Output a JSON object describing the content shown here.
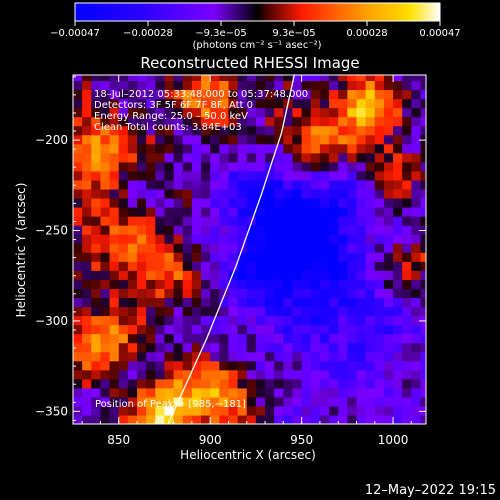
{
  "chart_data": {
    "type": "heatmap",
    "title": "Reconstructed RHESSI Image",
    "xlabel": "Heliocentric X (arcsec)",
    "ylabel": "Heliocentric Y (arcsec)",
    "xlim": [
      825,
      1018
    ],
    "ylim": [
      -357,
      -164
    ],
    "x_ticks": [
      850,
      900,
      950,
      1000
    ],
    "y_ticks": [
      -350,
      -300,
      -250,
      -200
    ],
    "x_tick_labels": [
      "850",
      "900",
      "950",
      "1000"
    ],
    "y_tick_labels": [
      "−350",
      "−300",
      "−250",
      "−200"
    ],
    "colorbar": {
      "range": [
        -0.00047,
        0.00047
      ],
      "tick_labels": [
        "−0.00047",
        "−0.00028",
        "−9.3e−05",
        "9.3e−05",
        "0.00028",
        "0.00047"
      ],
      "unit_label": "(photons cm⁻² s⁻¹ asec⁻²)",
      "colors": [
        "#0000ff",
        "#7a00ff",
        "#ff1a00",
        "#ffa000",
        "#ffffff"
      ]
    },
    "annotations": [
      "18–Jul–2012 05:33:48.000 to 05:37:48.000",
      "Detectors: 3F 5F 6F 7F 8F, Att 0",
      "Energy Range: 25.0 – 50.0 keV",
      "Clean     Total counts: 3.84E+03"
    ],
    "peak_label": "Position of Peak = [985,−181]",
    "limb": [
      [
        877,
        -357
      ],
      [
        898,
        -310
      ],
      [
        914,
        -270
      ],
      [
        928,
        -230
      ],
      [
        939,
        -196
      ],
      [
        946,
        -164
      ]
    ],
    "bright_regions": [
      {
        "x": 985,
        "y": -181,
        "level": 0.00047
      },
      {
        "x": 955,
        "y": -200,
        "level": 0.00035
      },
      {
        "x": 838,
        "y": -205,
        "level": 0.00036
      },
      {
        "x": 900,
        "y": -175,
        "level": 0.00028
      },
      {
        "x": 870,
        "y": -270,
        "level": 0.0003
      },
      {
        "x": 840,
        "y": -310,
        "level": 0.00033
      },
      {
        "x": 878,
        "y": -350,
        "level": 0.00045
      },
      {
        "x": 905,
        "y": -340,
        "level": 0.0004
      },
      {
        "x": 1012,
        "y": -265,
        "level": 0.0002
      },
      {
        "x": 1000,
        "y": -215,
        "level": 0.00022
      },
      {
        "x": 840,
        "y": -250,
        "level": 0.0002
      }
    ],
    "dark_regions": [
      {
        "x": 955,
        "y": -250,
        "level": -0.0004
      },
      {
        "x": 935,
        "y": -270,
        "level": -0.0003
      },
      {
        "x": 975,
        "y": -300,
        "level": -0.00018
      },
      {
        "x": 925,
        "y": -230,
        "level": -0.0002
      }
    ]
  },
  "footer": {
    "timestamp": "12–May–2022 19:15"
  }
}
